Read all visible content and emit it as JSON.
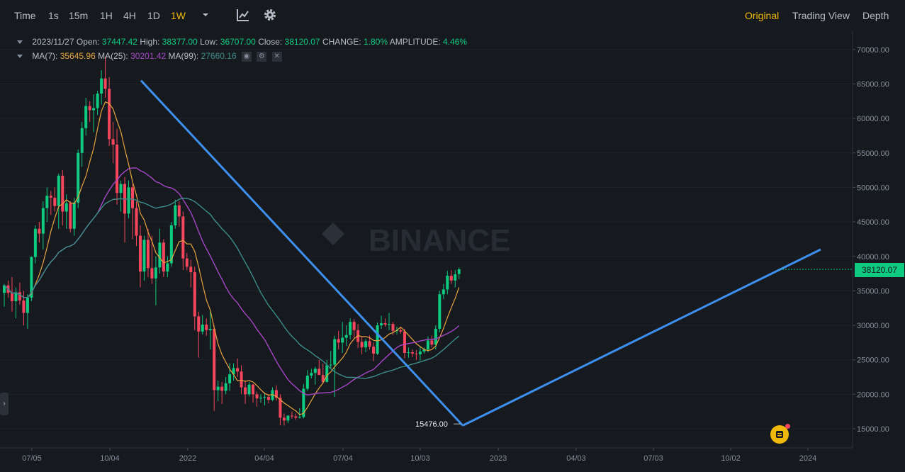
{
  "toolbar": {
    "time_label": "Time",
    "timeframes": [
      "1s",
      "15m",
      "1H",
      "4H",
      "1D",
      "1W"
    ],
    "active_timeframe": "1W",
    "views": [
      "Original",
      "Trading View",
      "Depth"
    ],
    "active_view": "Original"
  },
  "legend": {
    "date": "2023/11/27",
    "open_label": "Open:",
    "open": "37447.42",
    "high_label": "High:",
    "high": "38377.00",
    "low_label": "Low:",
    "low": "36707.00",
    "close_label": "Close:",
    "close": "38120.07",
    "change_label": "CHANGE:",
    "change": "1.80%",
    "amplitude_label": "AMPLITUDE:",
    "amplitude": "4.46%",
    "ma7_label": "MA(7):",
    "ma7": "35645.96",
    "ma25_label": "MA(25):",
    "ma25": "30201.42",
    "ma99_label": "MA(99):",
    "ma99": "27660.16"
  },
  "watermark": "BINANCE",
  "current_price": "38120.07",
  "low_marker": "15476.00",
  "colors": {
    "up": "#0ecb81",
    "down": "#f6465d",
    "ma7": "#e7a33e",
    "ma25": "#a646c8",
    "ma99": "#3c8d8a",
    "trend": "#3d8ff0",
    "accent": "#f0b90b"
  },
  "chart_data": {
    "type": "candlestick",
    "y_axis_ticks": [
      "70000.00",
      "65000.00",
      "60000.00",
      "55000.00",
      "50000.00",
      "45000.00",
      "40000.00",
      "35000.00",
      "30000.00",
      "25000.00",
      "20000.00",
      "15000.00"
    ],
    "x_axis_ticks": [
      "07/05",
      "10/04",
      "2022",
      "04/04",
      "07/04",
      "10/03",
      "2023",
      "04/03",
      "07/03",
      "10/02",
      "2024"
    ],
    "ylim": [
      12000,
      72000
    ],
    "candles_ohlc": [
      [
        34700,
        36000,
        32700,
        35800
      ],
      [
        35800,
        36500,
        34000,
        34700
      ],
      [
        34700,
        37000,
        32000,
        33500
      ],
      [
        33500,
        35500,
        31000,
        34800
      ],
      [
        34800,
        36200,
        33000,
        33600
      ],
      [
        33600,
        35000,
        30000,
        31800
      ],
      [
        31800,
        34500,
        29500,
        34000
      ],
      [
        34000,
        40000,
        33500,
        39900
      ],
      [
        39900,
        44500,
        39000,
        44000
      ],
      [
        44000,
        45000,
        42000,
        43300
      ],
      [
        43300,
        48000,
        41000,
        47000
      ],
      [
        47000,
        50000,
        45000,
        48800
      ],
      [
        48800,
        49500,
        46000,
        48500
      ],
      [
        48500,
        50000,
        46500,
        47300
      ],
      [
        47300,
        52000,
        44000,
        51700
      ],
      [
        51700,
        52500,
        44500,
        46500
      ],
      [
        46500,
        49000,
        44000,
        47700
      ],
      [
        47700,
        48000,
        43500,
        44000
      ],
      [
        44000,
        48500,
        43000,
        47800
      ],
      [
        47800,
        55500,
        47000,
        55000
      ],
      [
        55000,
        59500,
        53000,
        58600
      ],
      [
        58600,
        63000,
        57500,
        61800
      ],
      [
        61800,
        62500,
        59500,
        61200
      ],
      [
        61200,
        63500,
        58000,
        61500
      ],
      [
        61500,
        64000,
        60500,
        63600
      ],
      [
        63600,
        67000,
        62000,
        65800
      ],
      [
        65800,
        69000,
        63000,
        64300
      ],
      [
        64300,
        66000,
        56000,
        57000
      ],
      [
        57000,
        59500,
        53500,
        56200
      ],
      [
        56200,
        58500,
        47500,
        49200
      ],
      [
        49200,
        51000,
        46500,
        50500
      ],
      [
        50500,
        51500,
        42000,
        46200
      ],
      [
        46200,
        51000,
        45500,
        50000
      ],
      [
        50000,
        50500,
        42500,
        47000
      ],
      [
        47000,
        48000,
        41500,
        43000
      ],
      [
        43000,
        44500,
        35500,
        37800
      ],
      [
        37800,
        43000,
        36500,
        42400
      ],
      [
        42400,
        44000,
        37000,
        38300
      ],
      [
        38300,
        43000,
        36000,
        36800
      ],
      [
        36800,
        40000,
        32900,
        38400
      ],
      [
        38400,
        44000,
        37500,
        42000
      ],
      [
        42000,
        42500,
        37000,
        37800
      ],
      [
        37800,
        40000,
        37000,
        39000
      ],
      [
        39000,
        45000,
        38500,
        44500
      ],
      [
        44500,
        48200,
        44000,
        47400
      ],
      [
        47400,
        48000,
        44300,
        45800
      ],
      [
        45800,
        46500,
        38000,
        39700
      ],
      [
        39700,
        40500,
        38000,
        38500
      ],
      [
        38500,
        39500,
        35500,
        37700
      ],
      [
        37700,
        38500,
        29300,
        31300
      ],
      [
        31300,
        32000,
        25300,
        29100
      ],
      [
        29100,
        31500,
        28700,
        30100
      ],
      [
        30100,
        31000,
        28500,
        29300
      ],
      [
        29300,
        32000,
        26500,
        29500
      ],
      [
        29500,
        30000,
        17600,
        20600
      ],
      [
        20600,
        22000,
        19000,
        21100
      ],
      [
        21100,
        21800,
        18600,
        20500
      ],
      [
        20500,
        22500,
        20000,
        21600
      ],
      [
        21600,
        24500,
        20500,
        22900
      ],
      [
        22900,
        24500,
        22000,
        23800
      ],
      [
        23800,
        25200,
        22500,
        23300
      ],
      [
        23300,
        24200,
        20000,
        21000
      ],
      [
        21000,
        22000,
        18600,
        20000
      ],
      [
        20000,
        21800,
        19700,
        21400
      ],
      [
        21400,
        21500,
        18800,
        20000
      ],
      [
        20000,
        20400,
        18200,
        19400
      ],
      [
        19400,
        20000,
        18800,
        19500
      ],
      [
        19500,
        20200,
        18400,
        19600
      ],
      [
        19600,
        20000,
        18700,
        19200
      ],
      [
        19200,
        21000,
        19000,
        20600
      ],
      [
        20600,
        21300,
        19100,
        19500
      ],
      [
        19500,
        20000,
        15500,
        16600
      ],
      [
        16600,
        17200,
        15476,
        16200
      ],
      [
        16200,
        17000,
        15800,
        16900
      ],
      [
        16900,
        17500,
        16500,
        16800
      ],
      [
        16800,
        17200,
        16300,
        16600
      ],
      [
        16600,
        18000,
        16500,
        16700
      ],
      [
        16700,
        21500,
        16500,
        20800
      ],
      [
        20800,
        23500,
        20500,
        22700
      ],
      [
        22700,
        23700,
        22300,
        23100
      ],
      [
        23100,
        24000,
        21400,
        23700
      ],
      [
        23700,
        25000,
        23000,
        22800
      ],
      [
        22800,
        24500,
        21500,
        21800
      ],
      [
        21800,
        25000,
        21700,
        24200
      ],
      [
        24200,
        26300,
        23800,
        24300
      ],
      [
        24300,
        28500,
        19600,
        28000
      ],
      [
        28000,
        29200,
        26500,
        27500
      ],
      [
        27500,
        30500,
        26000,
        28200
      ],
      [
        28200,
        30000,
        27000,
        28600
      ],
      [
        28600,
        31000,
        28000,
        30500
      ],
      [
        30500,
        30900,
        28200,
        29300
      ],
      [
        29300,
        30200,
        26700,
        27600
      ],
      [
        27600,
        28400,
        25800,
        26800
      ],
      [
        26800,
        28000,
        26100,
        27700
      ],
      [
        27700,
        28500,
        26500,
        26900
      ],
      [
        26900,
        27500,
        24800,
        25900
      ],
      [
        25900,
        30400,
        25700,
        30000
      ],
      [
        30000,
        31400,
        29500,
        30300
      ],
      [
        30300,
        31000,
        29800,
        30100
      ],
      [
        30100,
        31800,
        29300,
        30200
      ],
      [
        30200,
        30500,
        28600,
        29200
      ],
      [
        29200,
        29800,
        28700,
        29300
      ],
      [
        29300,
        29600,
        28800,
        29100
      ],
      [
        29100,
        29500,
        25200,
        26000
      ],
      [
        26000,
        26800,
        25300,
        26100
      ],
      [
        26100,
        26500,
        25400,
        25900
      ],
      [
        25900,
        26400,
        25000,
        25800
      ],
      [
        25800,
        27000,
        24900,
        26200
      ],
      [
        26200,
        26800,
        25900,
        26500
      ],
      [
        26500,
        28400,
        26100,
        27800
      ],
      [
        27800,
        28500,
        26800,
        27200
      ],
      [
        27200,
        30000,
        26500,
        29500
      ],
      [
        29500,
        35000,
        29000,
        34500
      ],
      [
        34500,
        36000,
        33800,
        35200
      ],
      [
        35200,
        37900,
        34500,
        37200
      ],
      [
        37200,
        38000,
        36000,
        36500
      ],
      [
        36500,
        38000,
        35500,
        37400
      ],
      [
        37447.42,
        38377,
        36707,
        38120.07
      ]
    ],
    "trendlines": [
      {
        "from": [
          "2021-11-08",
          65500
        ],
        "to": [
          "2022-11-21",
          15476
        ]
      },
      {
        "from": [
          "2022-11-21",
          15476
        ],
        "to": [
          "2024-01-22",
          41000
        ]
      }
    ]
  }
}
